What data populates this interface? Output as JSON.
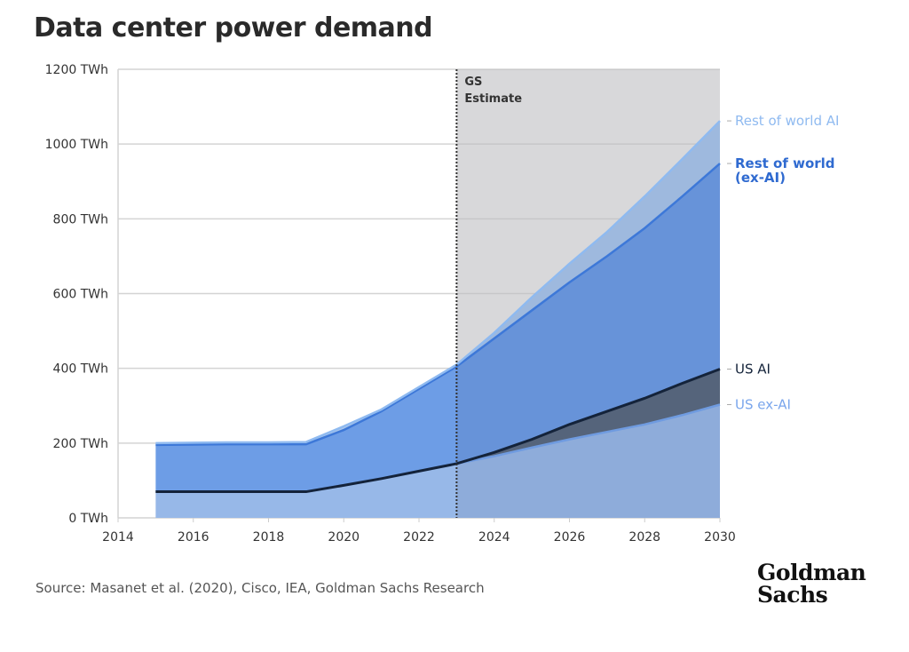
{
  "title": "Data center power demand",
  "source": "Source: Masanet et al. (2020), Cisco, IEA, Goldman Sachs Research",
  "logo": "Goldman Sachs",
  "chart_data": {
    "type": "area",
    "stacked": true,
    "title": "Data center power demand",
    "x": [
      2015,
      2016,
      2017,
      2018,
      2019,
      2020,
      2021,
      2022,
      2023,
      2024,
      2025,
      2026,
      2027,
      2028,
      2029,
      2030
    ],
    "xlim": [
      2014,
      2030
    ],
    "xticks": [
      "2014",
      "2016",
      "2018",
      "2020",
      "2022",
      "2024",
      "2026",
      "2028",
      "2030"
    ],
    "ylim": [
      0,
      1200
    ],
    "yticks": [
      "0 TWh",
      "200 TWh",
      "400 TWh",
      "600 TWh",
      "800 TWh",
      "1000 TWh",
      "1200 TWh"
    ],
    "unit": "TWh",
    "grid": true,
    "annotation": {
      "x": 2023,
      "line1": "GS",
      "line2": "Estimate"
    },
    "series": [
      {
        "name": "US ex-AI",
        "color": "#6f9be0",
        "fill": "#97b8e8",
        "values": [
          70,
          70,
          70,
          70,
          70,
          87,
          105,
          125,
          145,
          165,
          188,
          210,
          230,
          250,
          275,
          303
        ]
      },
      {
        "name": "US AI",
        "color": "#14233a",
        "fill": "#5a6a80",
        "values": [
          0,
          0,
          0,
          0,
          0,
          0,
          0,
          0,
          0,
          10,
          22,
          40,
          55,
          70,
          85,
          95
        ]
      },
      {
        "name": "Rest of world (ex-AI)",
        "color": "#3d78d8",
        "fill": "#6d9de6",
        "values": [
          125,
          126,
          127,
          127,
          127,
          148,
          180,
          220,
          260,
          305,
          345,
          380,
          415,
          455,
          500,
          550
        ]
      },
      {
        "name": "Rest of world AI",
        "color": "#8fbaf0",
        "fill": "#a9c6ec",
        "values": [
          5,
          5,
          5,
          5,
          6,
          10,
          5,
          5,
          5,
          15,
          35,
          50,
          65,
          85,
          100,
          114
        ]
      }
    ]
  }
}
